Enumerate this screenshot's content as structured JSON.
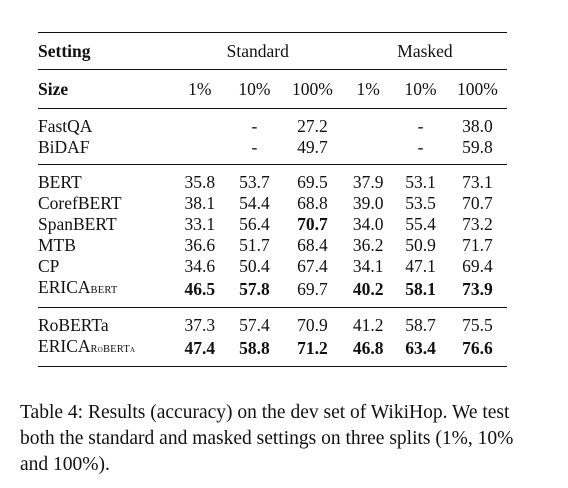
{
  "table": {
    "header": {
      "setting": "Setting",
      "standard": "Standard",
      "masked": "Masked",
      "size": "Size",
      "sizes": [
        "1%",
        "10%",
        "100%",
        "1%",
        "10%",
        "100%"
      ]
    },
    "groups": [
      {
        "rows": [
          {
            "name": "FastQA",
            "sub": "",
            "cells": [
              {
                "v": "",
                "b": false
              },
              {
                "v": "-",
                "b": false
              },
              {
                "v": "27.2",
                "b": false
              },
              {
                "v": "",
                "b": false
              },
              {
                "v": "-",
                "b": false
              },
              {
                "v": "38.0",
                "b": false
              }
            ]
          },
          {
            "name": "BiDAF",
            "sub": "",
            "cells": [
              {
                "v": "",
                "b": false
              },
              {
                "v": "-",
                "b": false
              },
              {
                "v": "49.7",
                "b": false
              },
              {
                "v": "",
                "b": false
              },
              {
                "v": "-",
                "b": false
              },
              {
                "v": "59.8",
                "b": false
              }
            ]
          }
        ]
      },
      {
        "rows": [
          {
            "name": "BERT",
            "sub": "",
            "cells": [
              {
                "v": "35.8",
                "b": false
              },
              {
                "v": "53.7",
                "b": false
              },
              {
                "v": "69.5",
                "b": false
              },
              {
                "v": "37.9",
                "b": false
              },
              {
                "v": "53.1",
                "b": false
              },
              {
                "v": "73.1",
                "b": false
              }
            ]
          },
          {
            "name": "CorefBERT",
            "sub": "",
            "cells": [
              {
                "v": "38.1",
                "b": false
              },
              {
                "v": "54.4",
                "b": false
              },
              {
                "v": "68.8",
                "b": false
              },
              {
                "v": "39.0",
                "b": false
              },
              {
                "v": "53.5",
                "b": false
              },
              {
                "v": "70.7",
                "b": false
              }
            ]
          },
          {
            "name": "SpanBERT",
            "sub": "",
            "cells": [
              {
                "v": "33.1",
                "b": false
              },
              {
                "v": "56.4",
                "b": false
              },
              {
                "v": "70.7",
                "b": true
              },
              {
                "v": "34.0",
                "b": false
              },
              {
                "v": "55.4",
                "b": false
              },
              {
                "v": "73.2",
                "b": false
              }
            ]
          },
          {
            "name": "MTB",
            "sub": "",
            "cells": [
              {
                "v": "36.6",
                "b": false
              },
              {
                "v": "51.7",
                "b": false
              },
              {
                "v": "68.4",
                "b": false
              },
              {
                "v": "36.2",
                "b": false
              },
              {
                "v": "50.9",
                "b": false
              },
              {
                "v": "71.7",
                "b": false
              }
            ]
          },
          {
            "name": "CP",
            "sub": "",
            "cells": [
              {
                "v": "34.6",
                "b": false
              },
              {
                "v": "50.4",
                "b": false
              },
              {
                "v": "67.4",
                "b": false
              },
              {
                "v": "34.1",
                "b": false
              },
              {
                "v": "47.1",
                "b": false
              },
              {
                "v": "69.4",
                "b": false
              }
            ]
          },
          {
            "name": "ERICA",
            "sub": "BERT",
            "cells": [
              {
                "v": "46.5",
                "b": true
              },
              {
                "v": "57.8",
                "b": true
              },
              {
                "v": "69.7",
                "b": false
              },
              {
                "v": "40.2",
                "b": true
              },
              {
                "v": "58.1",
                "b": true
              },
              {
                "v": "73.9",
                "b": true
              }
            ]
          }
        ]
      },
      {
        "rows": [
          {
            "name": "RoBERTa",
            "sub": "",
            "cells": [
              {
                "v": "37.3",
                "b": false
              },
              {
                "v": "57.4",
                "b": false
              },
              {
                "v": "70.9",
                "b": false
              },
              {
                "v": "41.2",
                "b": false
              },
              {
                "v": "58.7",
                "b": false
              },
              {
                "v": "75.5",
                "b": false
              }
            ]
          },
          {
            "name": "ERICA",
            "sub": "RoBERTa",
            "cells": [
              {
                "v": "47.4",
                "b": true
              },
              {
                "v": "58.8",
                "b": true
              },
              {
                "v": "71.2",
                "b": true
              },
              {
                "v": "46.8",
                "b": true
              },
              {
                "v": "63.4",
                "b": true
              },
              {
                "v": "76.6",
                "b": true
              }
            ]
          }
        ]
      }
    ]
  },
  "caption": "Table 4: Results (accuracy) on the dev set of WikiHop. We test both the standard and masked settings on three splits (1%, 10% and 100%)."
}
